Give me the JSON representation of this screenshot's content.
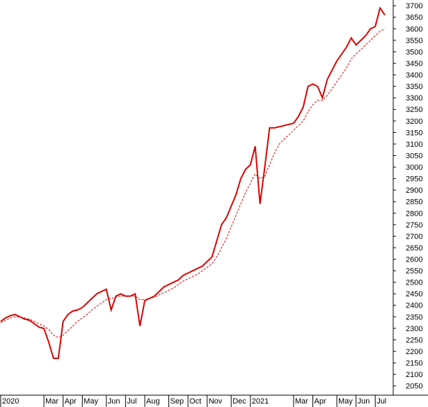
{
  "chart_data": {
    "type": "line",
    "categories": [
      "2020",
      null,
      null,
      null,
      null,
      null,
      null,
      null,
      null,
      "Mar",
      null,
      null,
      null,
      "Apr",
      null,
      null,
      null,
      "May",
      null,
      null,
      null,
      null,
      "Jun",
      null,
      null,
      null,
      "Jul",
      null,
      null,
      null,
      "Aug",
      null,
      null,
      null,
      null,
      "Sep",
      null,
      null,
      null,
      "Oct",
      null,
      null,
      null,
      "Nov",
      null,
      null,
      null,
      null,
      "Dec",
      null,
      null,
      null,
      "2021",
      null,
      null,
      null,
      null,
      null,
      null,
      null,
      null,
      "Mar",
      null,
      null,
      null,
      "Apr",
      null,
      null,
      null,
      null,
      "May",
      null,
      null,
      null,
      "Jun",
      null,
      null,
      null,
      "Jul",
      null,
      null
    ],
    "series": [
      {
        "color": "#dd0000",
        "dashed": false,
        "values": [
          2330,
          2345,
          2355,
          2360,
          2350,
          2340,
          2335,
          2320,
          2305,
          2300,
          2240,
          2170,
          2170,
          2330,
          2360,
          2375,
          2380,
          2390,
          2410,
          2430,
          2450,
          2460,
          2470,
          2380,
          2440,
          2450,
          2440,
          2440,
          2450,
          2310,
          2420,
          2430,
          2440,
          2460,
          2480,
          2490,
          2500,
          2510,
          2530,
          2540,
          2550,
          2560,
          2570,
          2590,
          2610,
          2680,
          2750,
          2780,
          2830,
          2880,
          2950,
          2990,
          3010,
          3090,
          2840,
          3000,
          3170,
          3170,
          3175,
          3180,
          3185,
          3190,
          3220,
          3260,
          3350,
          3360,
          3350,
          3300,
          3380,
          3420,
          3460,
          3490,
          3520,
          3560,
          3530,
          3550,
          3570,
          3600,
          3610,
          3690,
          3660
        ]
      },
      {
        "color": "#dd0000",
        "dashed": true,
        "values": [
          2325,
          2335,
          2345,
          2350,
          2350,
          2345,
          2340,
          2330,
          2320,
          2310,
          2295,
          2270,
          2260,
          2270,
          2290,
          2310,
          2330,
          2345,
          2360,
          2380,
          2395,
          2410,
          2425,
          2430,
          2435,
          2440,
          2440,
          2440,
          2440,
          2425,
          2425,
          2430,
          2435,
          2445,
          2455,
          2465,
          2475,
          2490,
          2505,
          2515,
          2525,
          2535,
          2550,
          2565,
          2580,
          2610,
          2650,
          2690,
          2740,
          2790,
          2840,
          2890,
          2930,
          2970,
          2950,
          2960,
          3010,
          3060,
          3100,
          3120,
          3140,
          3160,
          3180,
          3200,
          3240,
          3270,
          3290,
          3290,
          3310,
          3340,
          3370,
          3400,
          3430,
          3470,
          3490,
          3510,
          3530,
          3550,
          3570,
          3590,
          3600
        ]
      }
    ],
    "ylim": [
      2010,
      3725
    ],
    "yticks": [
      2050,
      2100,
      2150,
      2200,
      2250,
      2300,
      2350,
      2400,
      2450,
      2500,
      2550,
      2600,
      2650,
      2700,
      2750,
      2800,
      2850,
      2900,
      2950,
      3000,
      3050,
      3100,
      3150,
      3200,
      3250,
      3300,
      3350,
      3400,
      3450,
      3500,
      3550,
      3600,
      3650,
      3700
    ],
    "grid": false
  }
}
